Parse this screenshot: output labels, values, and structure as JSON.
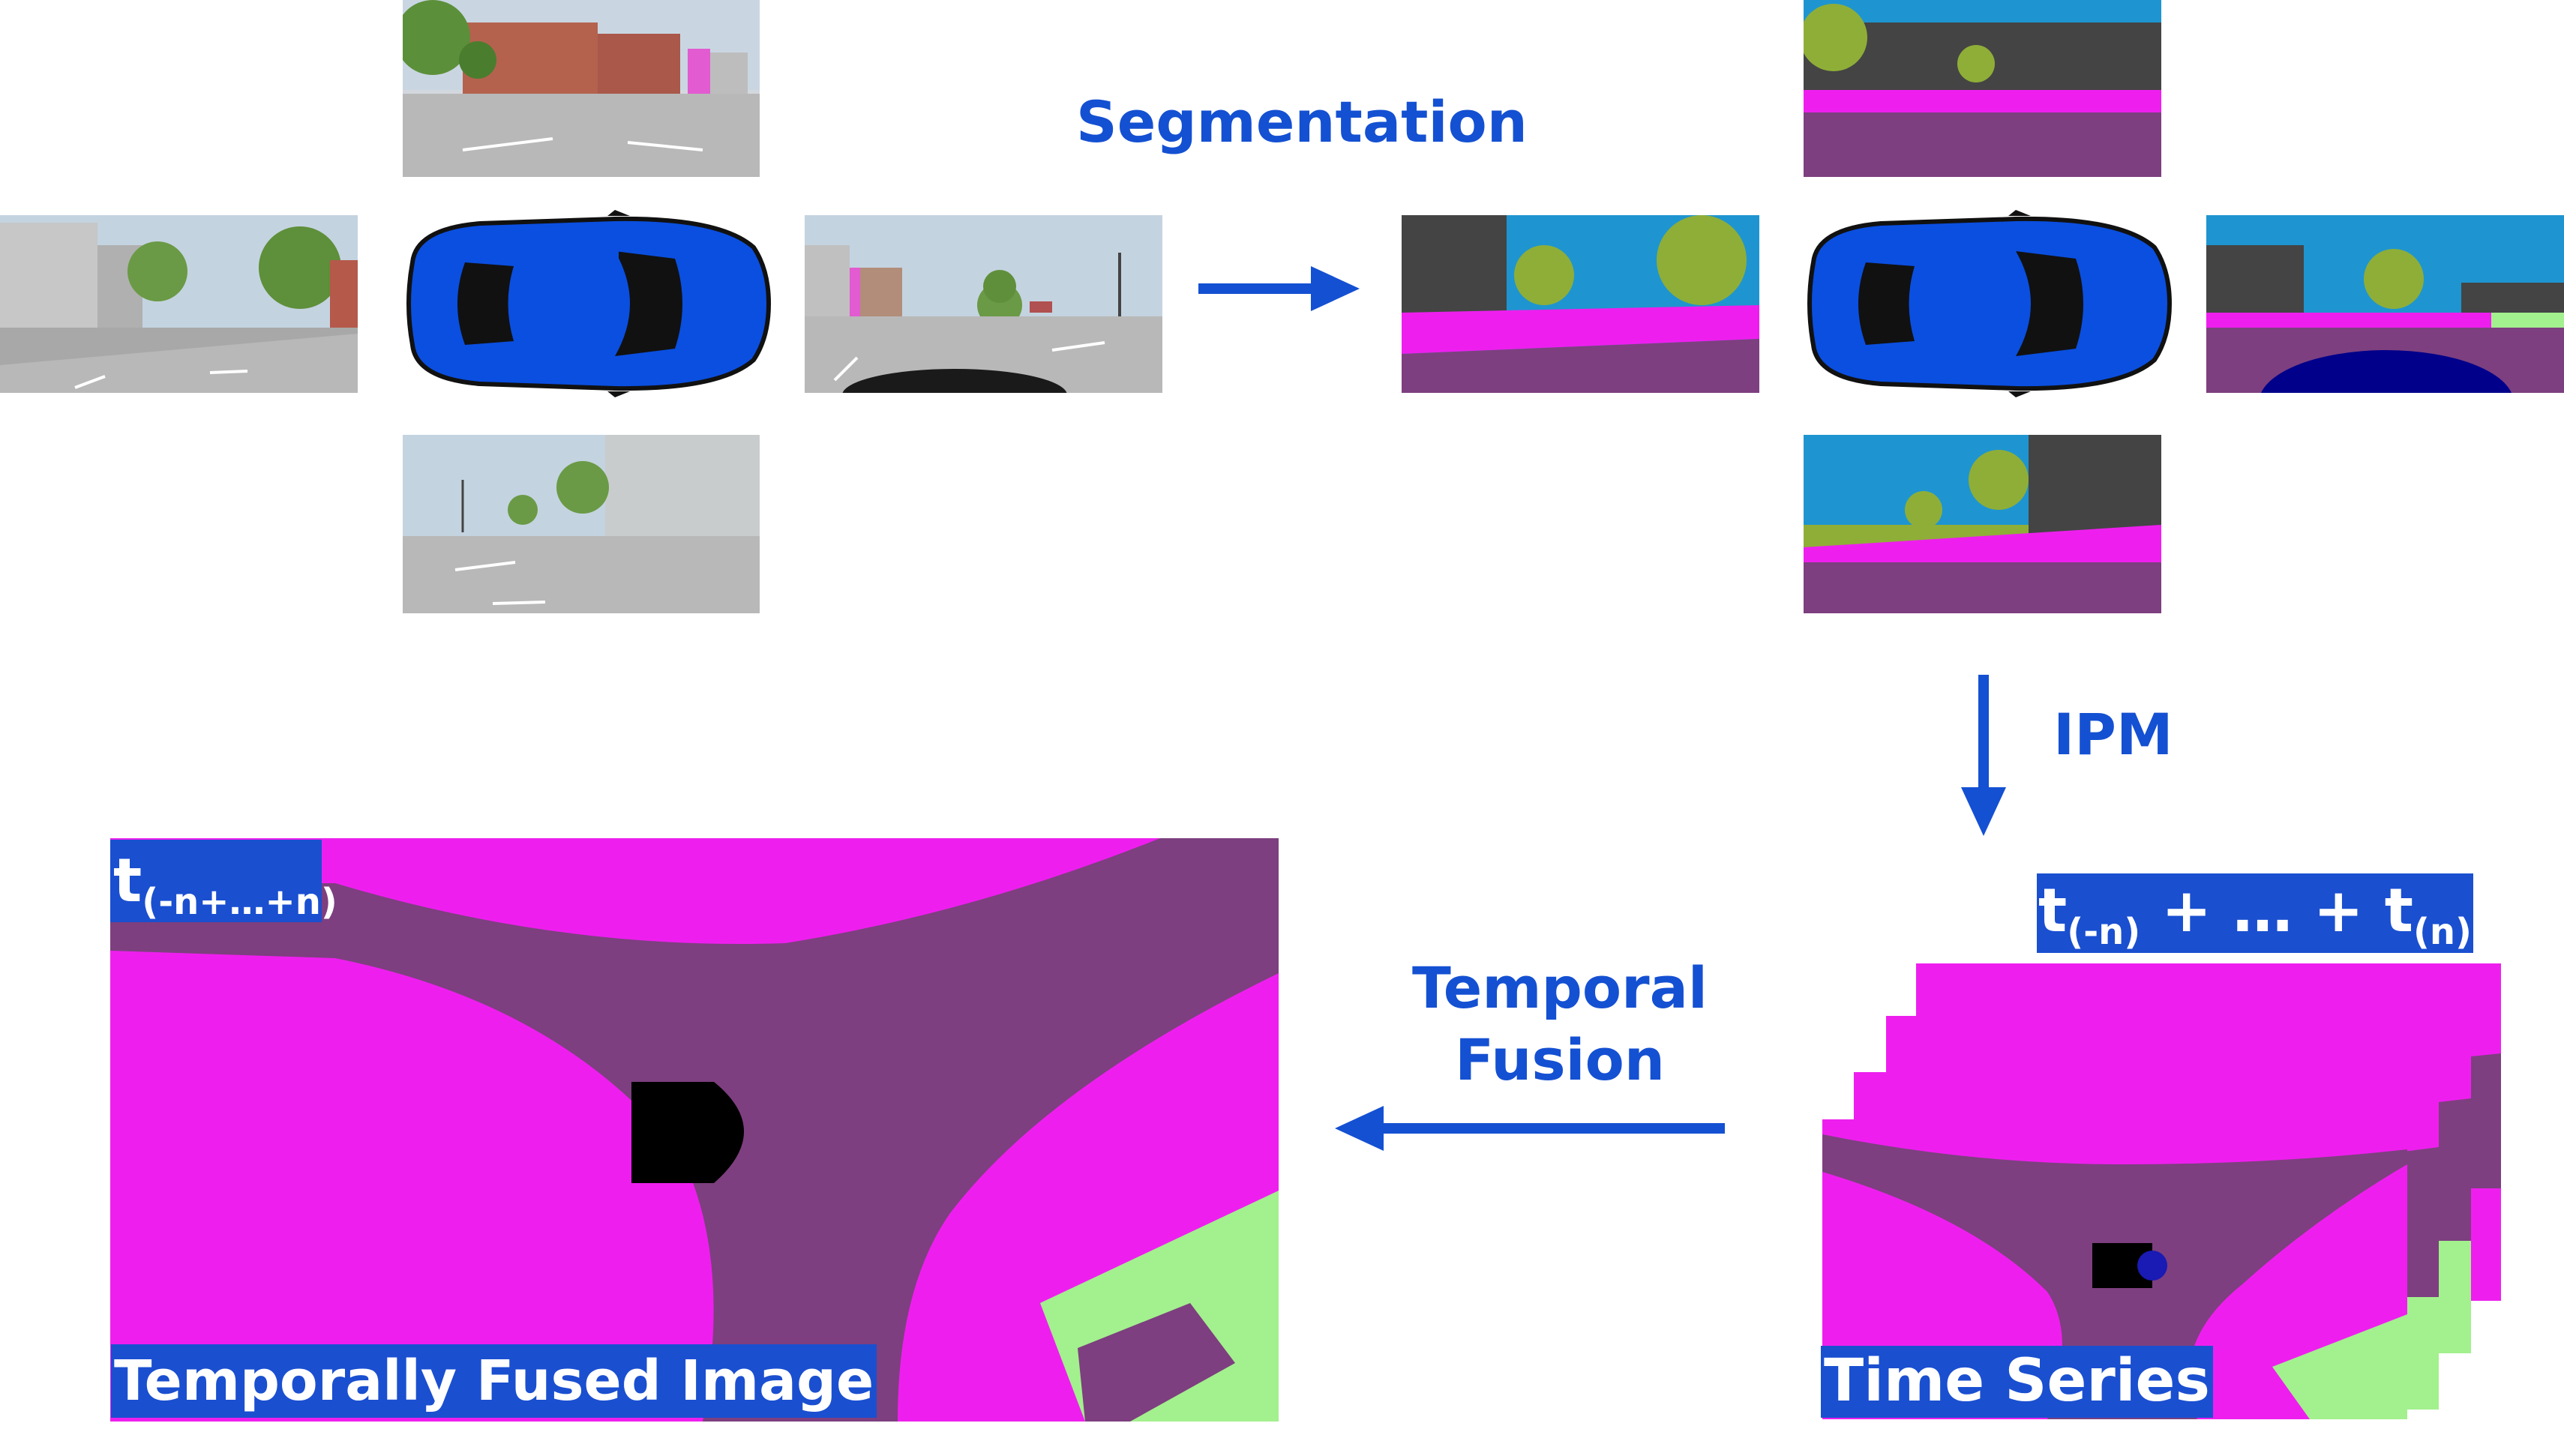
{
  "labels": {
    "segmentation": "Segmentation",
    "ipm": "IPM",
    "temporal_fusion_line1": "Temporal",
    "temporal_fusion_line2": "Fusion",
    "fused_time": "t",
    "fused_time_sub": "(-n+…+n)",
    "series_t1": "t",
    "series_t1_sub": "(-n)",
    "series_mid": " + … + t",
    "series_t2_sub": "(n)",
    "fused_caption": "Temporally Fused Image",
    "series_caption": "Time Series"
  },
  "colors": {
    "accent": "#1450d2",
    "car_blue": "#0a4fe0",
    "road": "#7d3f7f",
    "sidewalk": "#ee1fee",
    "vegetation": "#8fd36b",
    "sky": "#1e95d0",
    "building": "#444444",
    "ground": "#8a8a8a"
  }
}
